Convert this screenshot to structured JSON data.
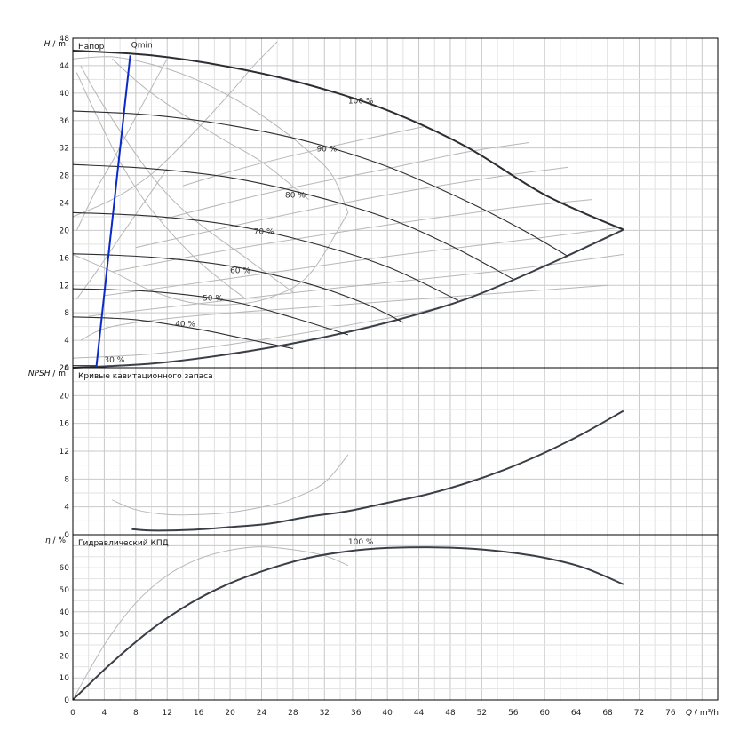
{
  "chart_data": [
    {
      "id": "head",
      "type": "line",
      "title": "Напор",
      "ylabel_var": "H",
      "ylabel_unit": "m",
      "xlim": [
        0,
        82
      ],
      "ylim": [
        0,
        48
      ],
      "yticks": [
        0,
        4,
        8,
        12,
        16,
        20,
        24,
        28,
        32,
        36,
        40,
        44,
        48
      ],
      "qmin_label": "Qmin",
      "qmin_line": [
        [
          3,
          0.2
        ],
        [
          7.3,
          45.5
        ]
      ],
      "speed_curves": [
        {
          "label": "100 %",
          "label_at": [
            35,
            38.5
          ],
          "points": [
            [
              0,
              46.2
            ],
            [
              10,
              45.5
            ],
            [
              20,
              43.8
            ],
            [
              30,
              41.2
            ],
            [
              40,
              37.5
            ],
            [
              50,
              32.2
            ],
            [
              60,
              25.2
            ],
            [
              70,
              20.1
            ]
          ]
        },
        {
          "label": "90 %",
          "label_at": [
            31,
            31.5
          ],
          "points": [
            [
              0,
              37.4
            ],
            [
              10,
              36.8
            ],
            [
              20,
              35.3
            ],
            [
              30,
              32.9
            ],
            [
              40,
              29.3
            ],
            [
              50,
              24.3
            ],
            [
              57,
              20.2
            ],
            [
              63,
              16.2
            ]
          ]
        },
        {
          "label": "80 %",
          "label_at": [
            27,
            24.8
          ],
          "points": [
            [
              0,
              29.6
            ],
            [
              10,
              29.0
            ],
            [
              20,
              27.7
            ],
            [
              30,
              25.2
            ],
            [
              40,
              21.8
            ],
            [
              48,
              17.8
            ],
            [
              56,
              12.9
            ]
          ]
        },
        {
          "label": "70 %",
          "label_at": [
            23,
            19.5
          ],
          "points": [
            [
              0,
              22.6
            ],
            [
              10,
              22.1
            ],
            [
              20,
              20.8
            ],
            [
              30,
              18.3
            ],
            [
              40,
              14.7
            ],
            [
              49,
              9.8
            ]
          ]
        },
        {
          "label": "60 %",
          "label_at": [
            20,
            13.8
          ],
          "points": [
            [
              0,
              16.6
            ],
            [
              10,
              16.1
            ],
            [
              20,
              14.8
            ],
            [
              30,
              12.2
            ],
            [
              37,
              9.4
            ],
            [
              42,
              6.6
            ]
          ]
        },
        {
          "label": "50 %",
          "label_at": [
            16.5,
            9.8
          ],
          "points": [
            [
              0,
              11.5
            ],
            [
              10,
              11.1
            ],
            [
              20,
              9.7
            ],
            [
              28,
              7.3
            ],
            [
              35,
              4.8
            ]
          ]
        },
        {
          "label": "40 %",
          "label_at": [
            13,
            6.0
          ],
          "points": [
            [
              0,
              7.4
            ],
            [
              8,
              7.0
            ],
            [
              16,
              5.6
            ],
            [
              22,
              4.2
            ],
            [
              28,
              2.8
            ]
          ]
        },
        {
          "label": "30 %",
          "label_at": [
            4,
            0.8
          ],
          "points": [
            [
              0,
              0.3
            ],
            [
              3,
              0.3
            ]
          ]
        }
      ],
      "system_curve": [
        [
          0,
          0.0
        ],
        [
          10,
          0.6
        ],
        [
          20,
          2.0
        ],
        [
          30,
          4.0
        ],
        [
          40,
          6.6
        ],
        [
          50,
          10.0
        ],
        [
          60,
          14.8
        ],
        [
          70,
          20.1
        ]
      ],
      "grey_curves": [
        [
          [
            0,
            45.0
          ],
          [
            5,
            45.3
          ],
          [
            10,
            44.2
          ],
          [
            15,
            42.3
          ],
          [
            20,
            39.5
          ],
          [
            25,
            36.0
          ],
          [
            30,
            31.5
          ],
          [
            33,
            28.0
          ],
          [
            35,
            22.6
          ]
        ],
        [
          [
            0,
            16.5
          ],
          [
            5,
            14.0
          ],
          [
            10,
            11.2
          ],
          [
            15,
            9.5
          ],
          [
            20,
            9.2
          ],
          [
            25,
            10.2
          ],
          [
            30,
            13.5
          ],
          [
            35,
            22.6
          ]
        ],
        [
          [
            0,
            1.4
          ],
          [
            10,
            2.0
          ],
          [
            20,
            3.4
          ],
          [
            35,
            6.2
          ],
          [
            50,
            10.0
          ],
          [
            70,
            20.1
          ]
        ],
        [
          [
            0,
            22.0
          ],
          [
            5,
            24.5
          ],
          [
            10,
            28.2
          ],
          [
            15,
            33.8
          ],
          [
            20,
            40.0
          ],
          [
            23,
            44.0
          ],
          [
            26,
            47.5
          ]
        ],
        [
          [
            1,
            4.0
          ],
          [
            5,
            6.0
          ],
          [
            15,
            7.5
          ],
          [
            30,
            8.8
          ],
          [
            50,
            10.5
          ],
          [
            68,
            12.0
          ]
        ],
        [
          [
            2,
            7.5
          ],
          [
            15,
            9.2
          ],
          [
            35,
            11.8
          ],
          [
            55,
            14.2
          ],
          [
            70,
            16.5
          ]
        ],
        [
          [
            4,
            10.5
          ],
          [
            20,
            13.0
          ],
          [
            40,
            16.2
          ],
          [
            60,
            19.0
          ],
          [
            70,
            20.5
          ]
        ],
        [
          [
            5,
            14.0
          ],
          [
            20,
            17.2
          ],
          [
            40,
            20.8
          ],
          [
            55,
            23.2
          ],
          [
            66,
            24.5
          ]
        ],
        [
          [
            8,
            17.5
          ],
          [
            25,
            21.8
          ],
          [
            40,
            25.2
          ],
          [
            55,
            28.0
          ],
          [
            63,
            29.2
          ]
        ],
        [
          [
            11,
            21.5
          ],
          [
            25,
            25.5
          ],
          [
            40,
            29.0
          ],
          [
            50,
            31.4
          ],
          [
            58,
            32.8
          ]
        ],
        [
          [
            14,
            26.5
          ],
          [
            22,
            29.2
          ],
          [
            32,
            32.0
          ],
          [
            40,
            34.0
          ],
          [
            45,
            35.2
          ]
        ],
        [
          [
            5,
            45.0
          ],
          [
            10,
            40.0
          ],
          [
            18,
            34.0
          ],
          [
            24,
            30.0
          ],
          [
            30,
            24.5
          ]
        ],
        [
          [
            1,
            44.0
          ],
          [
            4,
            38.0
          ],
          [
            10,
            28.0
          ],
          [
            15,
            22.0
          ],
          [
            22,
            16.0
          ],
          [
            28,
            11.0
          ]
        ],
        [
          [
            0.5,
            43.0
          ],
          [
            2.5,
            38.0
          ],
          [
            6,
            30.0
          ],
          [
            10,
            23.0
          ],
          [
            16,
            15.5
          ],
          [
            22,
            10.0
          ]
        ],
        [
          [
            0.5,
            20.0
          ],
          [
            3,
            26.0
          ],
          [
            5,
            30.0
          ],
          [
            8,
            36.5
          ],
          [
            12,
            45.0
          ]
        ],
        [
          [
            0.5,
            10.0
          ],
          [
            3,
            14.0
          ],
          [
            6,
            19.0
          ],
          [
            9,
            24.0
          ],
          [
            12,
            29.0
          ]
        ]
      ]
    },
    {
      "id": "npsh",
      "type": "line",
      "title": "Кривые кавитационного запаса",
      "ylabel_var": "NPSH",
      "ylabel_unit": "m",
      "xlim": [
        0,
        82
      ],
      "ylim": [
        0,
        24
      ],
      "yticks": [
        0,
        4,
        8,
        12,
        16,
        20,
        24
      ],
      "main_curve": [
        [
          7.5,
          0.8
        ],
        [
          10,
          0.6
        ],
        [
          15,
          0.7
        ],
        [
          20,
          1.1
        ],
        [
          25,
          1.6
        ],
        [
          30,
          2.6
        ],
        [
          35,
          3.4
        ],
        [
          40,
          4.6
        ],
        [
          45,
          5.8
        ],
        [
          50,
          7.4
        ],
        [
          55,
          9.4
        ],
        [
          60,
          11.8
        ],
        [
          65,
          14.6
        ],
        [
          70,
          17.8
        ]
      ],
      "grey_curve": [
        [
          5,
          5.0
        ],
        [
          8,
          3.6
        ],
        [
          12,
          2.9
        ],
        [
          16,
          2.9
        ],
        [
          20,
          3.2
        ],
        [
          25,
          4.2
        ],
        [
          28,
          5.2
        ],
        [
          32,
          7.5
        ],
        [
          35,
          11.5
        ]
      ]
    },
    {
      "id": "eff",
      "type": "line",
      "title": "Гидравлический КПД",
      "ylabel_var": "η",
      "ylabel_unit": "%",
      "xlabel_var": "Q",
      "xlabel_unit": "m³/h",
      "xlim": [
        0,
        82
      ],
      "ylim": [
        0,
        75
      ],
      "yticks": [
        0,
        10,
        20,
        30,
        40,
        50,
        60
      ],
      "xticks": [
        0,
        4,
        8,
        12,
        16,
        20,
        24,
        28,
        32,
        36,
        40,
        44,
        48,
        52,
        56,
        60,
        64,
        68,
        72,
        76
      ],
      "curve_label": "100 %",
      "curve_label_at": [
        35,
        70.5
      ],
      "main_curve": [
        [
          0,
          0
        ],
        [
          5,
          17
        ],
        [
          10,
          32
        ],
        [
          15,
          44
        ],
        [
          20,
          53
        ],
        [
          25,
          59.5
        ],
        [
          30,
          64.5
        ],
        [
          35,
          67.5
        ],
        [
          40,
          69
        ],
        [
          45,
          69.3
        ],
        [
          50,
          68.8
        ],
        [
          55,
          67.2
        ],
        [
          60,
          64.5
        ],
        [
          65,
          60
        ],
        [
          70,
          52.5
        ]
      ],
      "grey_curve": [
        [
          0,
          0
        ],
        [
          4,
          25
        ],
        [
          8,
          44
        ],
        [
          12,
          56.5
        ],
        [
          16,
          64
        ],
        [
          20,
          68
        ],
        [
          24,
          69.5
        ],
        [
          28,
          68.2
        ],
        [
          32,
          65.5
        ],
        [
          35,
          61
        ]
      ]
    }
  ]
}
